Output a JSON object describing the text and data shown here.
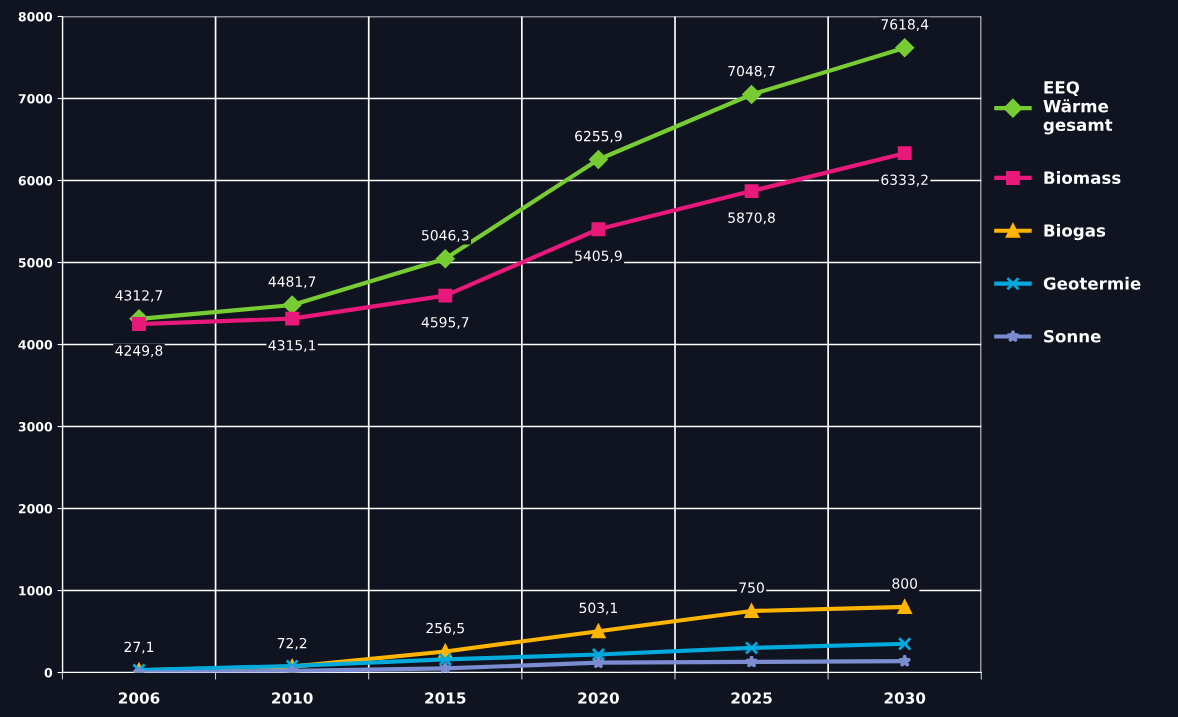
{
  "chart_data": {
    "type": "line",
    "categories": [
      "2006",
      "2010",
      "2015",
      "2020",
      "2025",
      "2030"
    ],
    "series": [
      {
        "name": "EEQ\nWärme\ngesamt",
        "color": "#77cc33",
        "marker": "diamond",
        "values": [
          4312.7,
          4481.7,
          5046.3,
          6255.9,
          7048.7,
          7618.4
        ],
        "value_labels": [
          "4312,7",
          "4481,7",
          "5046,3",
          "6255,9",
          "7048,7",
          "7618,4"
        ]
      },
      {
        "name": "Biomass",
        "color": "#e8197a",
        "marker": "square",
        "values": [
          4249.8,
          4315.1,
          4595.7,
          5405.9,
          5870.8,
          6333.2
        ],
        "value_labels": [
          "4249,8",
          "4315,1",
          "4595,7",
          "5405,9",
          "5870,8",
          "6333,2"
        ]
      },
      {
        "name": "Biogas",
        "color": "#ffb400",
        "marker": "triangle",
        "values": [
          27.1,
          72.2,
          256.5,
          503.1,
          750,
          800
        ],
        "value_labels": [
          "27,1",
          "72,2",
          "256,5",
          "503,1",
          "750",
          "800"
        ]
      },
      {
        "name": "Geotermie",
        "color": "#00aadd",
        "marker": "cross",
        "values": [
          30,
          80,
          160,
          220,
          300,
          350
        ]
      },
      {
        "name": "Sonne",
        "color": "#7b8dd0",
        "marker": "star",
        "values": [
          0,
          20,
          50,
          120,
          130,
          140
        ]
      }
    ],
    "ylim": [
      0,
      8000
    ],
    "yticks": [
      0,
      1000,
      2000,
      3000,
      4000,
      5000,
      6000,
      7000,
      8000
    ],
    "grid": true,
    "legend": "right",
    "line_style": "solid"
  }
}
